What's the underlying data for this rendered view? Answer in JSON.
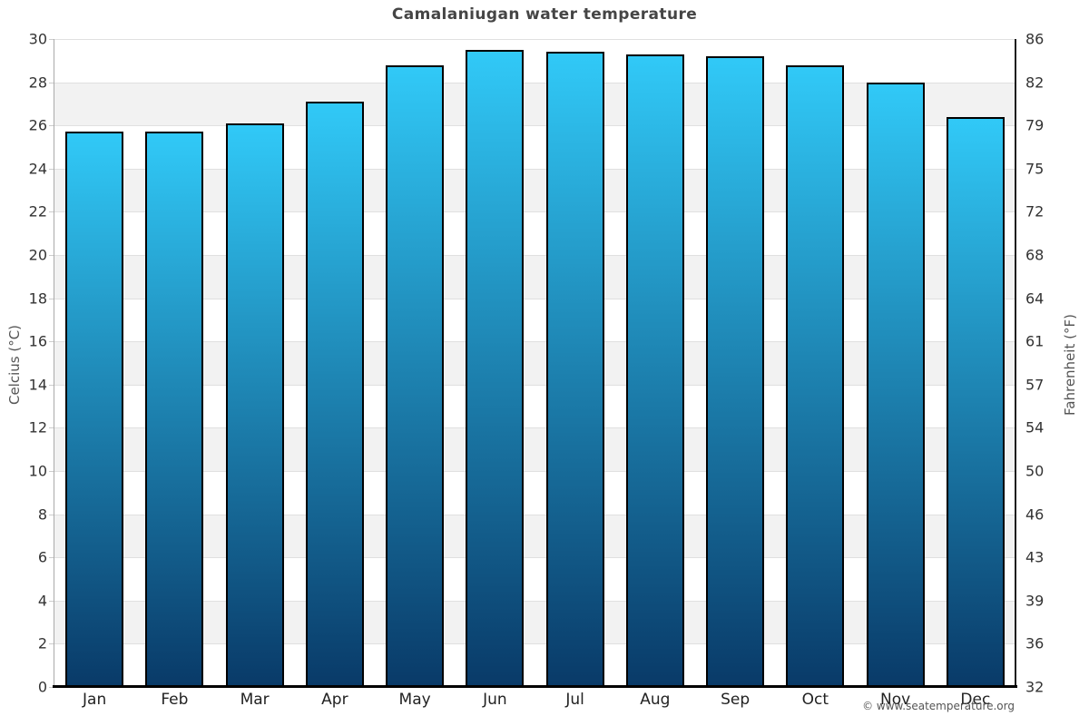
{
  "page": {
    "title": "Camalaniugan water temperature"
  },
  "footer": {
    "copyright": "© www.seatemperature.org"
  },
  "chart_data": {
    "type": "bar",
    "title": "Camalaniugan water temperature",
    "categories": [
      "Jan",
      "Feb",
      "Mar",
      "Apr",
      "May",
      "Jun",
      "Jul",
      "Aug",
      "Sep",
      "Oct",
      "Nov",
      "Dec"
    ],
    "series": [
      {
        "name": "Water temperature",
        "unit": "°C",
        "values": [
          25.7,
          25.7,
          26.1,
          27.1,
          28.8,
          29.5,
          29.4,
          29.3,
          29.2,
          28.8,
          28.0,
          26.4
        ]
      }
    ],
    "ylabel_left": "Celcius (°C)",
    "ylabel_right": "Fahrenheit (°F)",
    "yticks_left": [
      30,
      28,
      26,
      24,
      22,
      20,
      18,
      16,
      14,
      12,
      10,
      8,
      6,
      4,
      2,
      0
    ],
    "yticks_right": [
      86,
      82,
      79,
      75,
      72,
      68,
      64,
      61,
      57,
      54,
      50,
      46,
      43,
      39,
      36,
      32
    ],
    "ylim": [
      0,
      30
    ],
    "grid": "horizontal gridlines every 2°C with alternating white/grey bands",
    "legend_position": "none"
  },
  "colors": {
    "bar_gradient_top": "#31C9F7",
    "bar_gradient_bottom": "#093A68",
    "bar_border": "#000000",
    "band_grey": "#F2F2F2",
    "band_white": "#FFFFFF",
    "gridline": "#E0E0E0",
    "left_spine": "#AAAAAA",
    "right_spine": "#1A1A1A",
    "baseline": "#000000",
    "tick_mark": "#CCCCCC",
    "title_text": "#454545",
    "tick_text": "#333333",
    "month_text": "#222222",
    "axis_label_text": "#555555",
    "copyright_text": "#555555"
  }
}
